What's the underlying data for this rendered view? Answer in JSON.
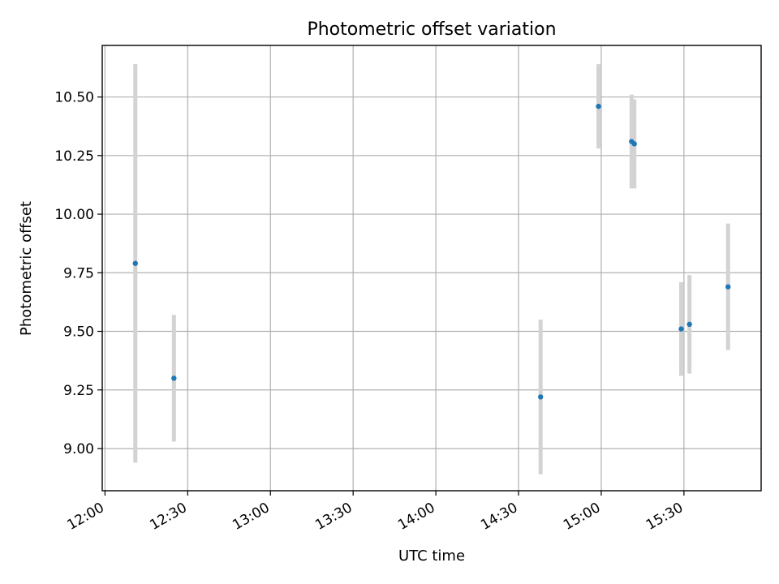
{
  "chart_data": {
    "type": "scatter",
    "title": "Photometric offset variation",
    "xlabel": "UTC time",
    "ylabel": "Photometric offset",
    "x_ticks": [
      "12:00",
      "12:30",
      "13:00",
      "13:30",
      "14:00",
      "14:30",
      "15:00",
      "15:30"
    ],
    "y_ticks": [
      "9.00",
      "9.25",
      "9.50",
      "9.75",
      "10.00",
      "10.25",
      "10.50"
    ],
    "xlim": [
      "11:59",
      "15:58"
    ],
    "ylim": [
      8.82,
      10.72
    ],
    "grid": true,
    "colors": {
      "marker": "#1f77b4",
      "errorbar": "#d3d3d3"
    },
    "points": [
      {
        "x": "12:11",
        "y": 9.79,
        "yerr": 0.85
      },
      {
        "x": "12:25",
        "y": 9.3,
        "yerr": 0.27
      },
      {
        "x": "14:38",
        "y": 9.22,
        "yerr": 0.33
      },
      {
        "x": "14:59",
        "y": 10.46,
        "yerr": 0.18
      },
      {
        "x": "15:11",
        "y": 10.31,
        "yerr": 0.2
      },
      {
        "x": "15:12",
        "y": 10.3,
        "yerr": 0.19
      },
      {
        "x": "15:29",
        "y": 9.51,
        "yerr": 0.2
      },
      {
        "x": "15:32",
        "y": 9.53,
        "yerr": 0.21
      },
      {
        "x": "15:46",
        "y": 9.69,
        "yerr": 0.27
      }
    ]
  }
}
